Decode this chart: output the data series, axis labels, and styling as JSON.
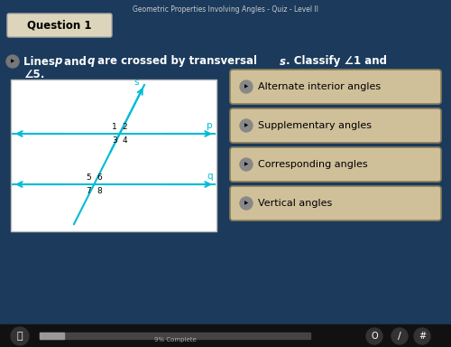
{
  "title": "Geometric Properties Involving Angles - Quiz - Level II",
  "question_label": "Question 1",
  "bg_color": "#1b3a5c",
  "diagram_bg": "#ffffff",
  "answer_options": [
    "Alternate interior angles",
    "Supplementary angles",
    "Corresponding angles",
    "Vertical angles"
  ],
  "answer_btn_color": "#cfc09a",
  "answer_btn_border": "#8a7d5a",
  "diagram_line_color": "#00bcd4",
  "progress": "9% Complete"
}
